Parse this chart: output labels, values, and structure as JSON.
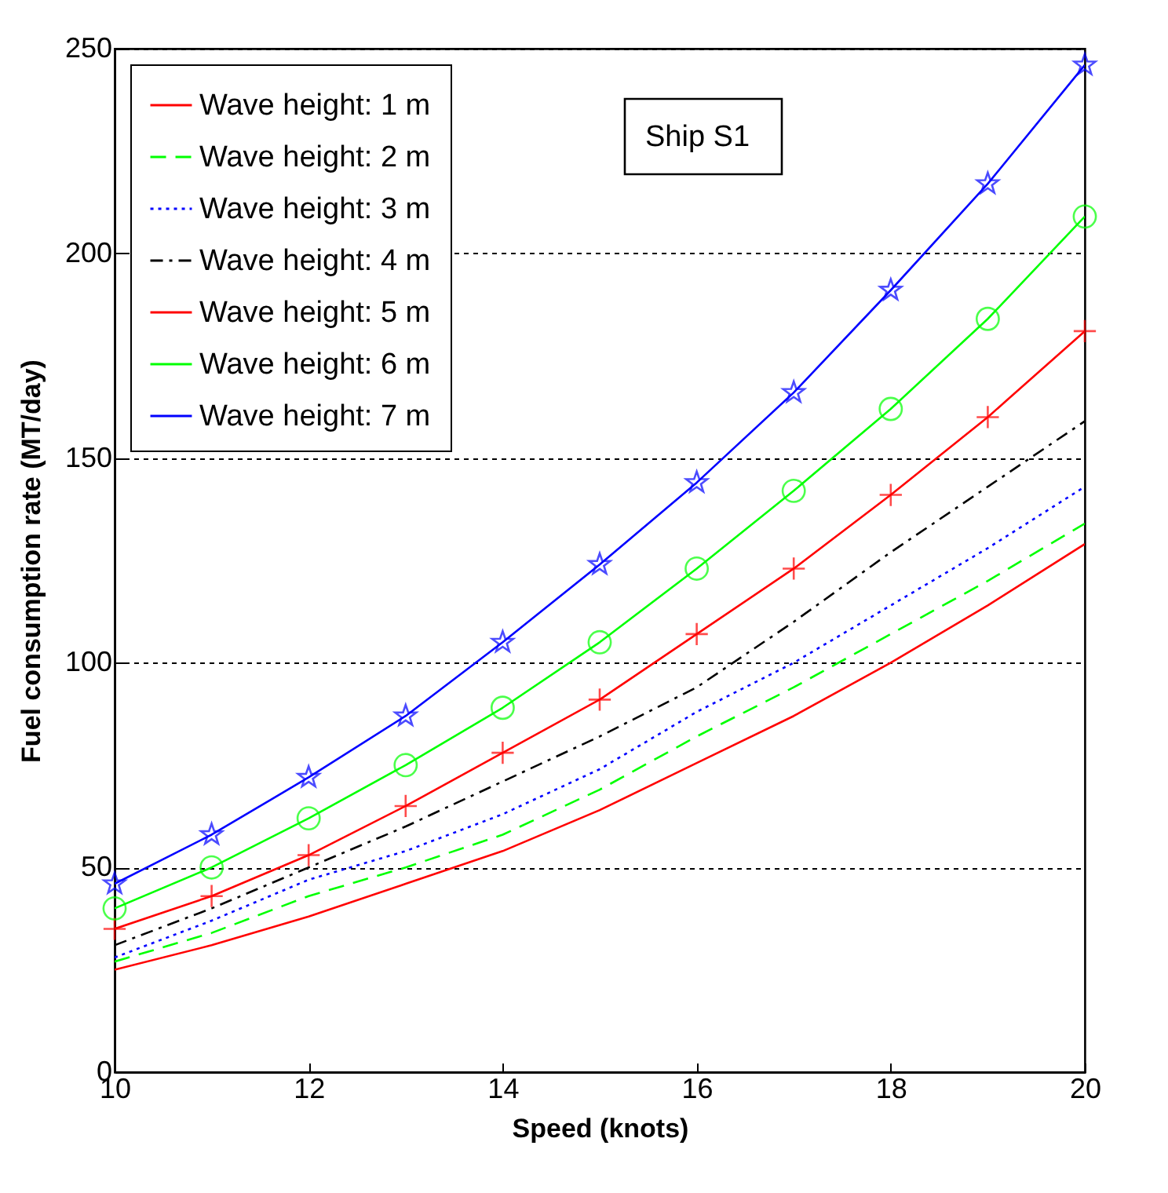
{
  "chart_data": {
    "type": "line",
    "xlabel": "Speed (knots)",
    "ylabel": "Fuel consumption rate (MT/day)",
    "x": [
      10,
      11,
      12,
      13,
      14,
      15,
      16,
      17,
      18,
      19,
      20
    ],
    "series": [
      {
        "name": "Wave height: 1 m",
        "color": "#ff0000",
        "line_style": "solid",
        "marker": "none",
        "values": [
          25,
          31,
          38,
          46,
          54,
          64,
          75.5,
          87,
          100,
          114,
          129
        ]
      },
      {
        "name": "Wave height: 2 m",
        "color": "#00ff00",
        "line_style": "dashed",
        "marker": "none",
        "values": [
          27,
          34,
          43,
          50,
          58,
          69,
          82,
          94,
          107,
          120,
          134
        ]
      },
      {
        "name": "Wave height: 3 m",
        "color": "#0000ff",
        "line_style": "dotted",
        "marker": "none",
        "values": [
          28,
          37,
          47,
          54,
          63,
          74,
          88,
          100,
          114,
          128,
          143
        ]
      },
      {
        "name": "Wave height: 4 m",
        "color": "#000000",
        "line_style": "dashdot",
        "marker": "none",
        "values": [
          31,
          40,
          50,
          60,
          71,
          82,
          94,
          110,
          127,
          143,
          159
        ]
      },
      {
        "name": "Wave height: 5 m",
        "color": "#ff0000",
        "line_style": "solid",
        "marker": "cross",
        "values": [
          35,
          43,
          53,
          65,
          78,
          91,
          107,
          123,
          141,
          160,
          181
        ]
      },
      {
        "name": "Wave height: 6 m",
        "color": "#00ff00",
        "line_style": "solid",
        "marker": "circle",
        "values": [
          40,
          50,
          62,
          75,
          89,
          105,
          123,
          142,
          162,
          184,
          209
        ]
      },
      {
        "name": "Wave height: 7 m",
        "color": "#0000ff",
        "line_style": "solid",
        "marker": "star",
        "values": [
          46,
          58,
          72,
          87,
          105,
          124,
          144,
          166,
          191,
          217,
          246
        ]
      }
    ],
    "xlim": [
      10,
      20
    ],
    "xticks": [
      10,
      12,
      14,
      16,
      18,
      20
    ],
    "ylim": [
      0,
      250
    ],
    "yticks": [
      0,
      50,
      100,
      150,
      200,
      250
    ],
    "grid": "y",
    "legend": "top left",
    "annotations": [
      "Ship S1"
    ]
  }
}
